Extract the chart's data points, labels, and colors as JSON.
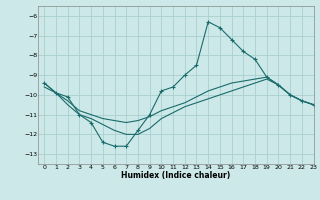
{
  "xlabel": "Humidex (Indice chaleur)",
  "background_color": "#cce8e8",
  "grid_color": "#aacfcf",
  "line_color": "#1a6b6b",
  "xlim": [
    -0.5,
    23
  ],
  "ylim": [
    -13.5,
    -5.5
  ],
  "yticks": [
    -13,
    -12,
    -11,
    -10,
    -9,
    -8,
    -7,
    -6
  ],
  "xticks": [
    0,
    1,
    2,
    3,
    4,
    5,
    6,
    7,
    8,
    9,
    10,
    11,
    12,
    13,
    14,
    15,
    16,
    17,
    18,
    19,
    20,
    21,
    22,
    23
  ],
  "line1_x": [
    0,
    1,
    2,
    3,
    4,
    5,
    6,
    7,
    8,
    9,
    10,
    11,
    12,
    13,
    14,
    15,
    16,
    17,
    18,
    19,
    20,
    21,
    22,
    23
  ],
  "line1_y": [
    -9.4,
    -9.9,
    -10.1,
    -11.0,
    -11.4,
    -12.4,
    -12.6,
    -12.6,
    -11.8,
    -11.0,
    -9.8,
    -9.6,
    -9.0,
    -8.5,
    -6.3,
    -6.6,
    -7.2,
    -7.8,
    -8.2,
    -9.1,
    -9.5,
    -10.0,
    -10.3,
    -10.5
  ],
  "line2_x": [
    0,
    1,
    2,
    3,
    4,
    5,
    6,
    7,
    8,
    9,
    10,
    11,
    12,
    13,
    14,
    15,
    16,
    17,
    18,
    19,
    20,
    21,
    22,
    23
  ],
  "line2_y": [
    -9.4,
    -9.9,
    -10.3,
    -10.8,
    -11.0,
    -11.2,
    -11.3,
    -11.4,
    -11.3,
    -11.1,
    -10.8,
    -10.6,
    -10.4,
    -10.1,
    -9.8,
    -9.6,
    -9.4,
    -9.3,
    -9.2,
    -9.1,
    -9.5,
    -10.0,
    -10.3,
    -10.5
  ],
  "line3_x": [
    0,
    1,
    2,
    3,
    4,
    5,
    6,
    7,
    8,
    9,
    10,
    11,
    12,
    13,
    14,
    15,
    16,
    17,
    18,
    19,
    20,
    21,
    22,
    23
  ],
  "line3_y": [
    -9.6,
    -9.9,
    -10.5,
    -11.0,
    -11.2,
    -11.5,
    -11.8,
    -12.0,
    -12.0,
    -11.7,
    -11.2,
    -10.9,
    -10.6,
    -10.4,
    -10.2,
    -10.0,
    -9.8,
    -9.6,
    -9.4,
    -9.2,
    -9.5,
    -10.0,
    -10.3,
    -10.5
  ]
}
